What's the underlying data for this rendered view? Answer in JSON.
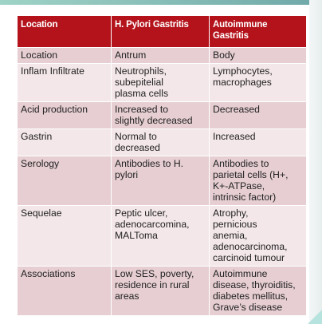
{
  "table": {
    "headers": [
      "Location",
      "H. Pylori Gastritis",
      "Autoimmune Gastritis"
    ],
    "rows": [
      [
        "Location",
        "Antrum",
        "Body"
      ],
      [
        "Inflam Infiltrate",
        "Neutrophils,\nsubepitelial\nplasma cells",
        "Lymphocytes,\nmacrophages"
      ],
      [
        "Acid production",
        "Increased to\nslightly decreased",
        "Decreased"
      ],
      [
        "Gastrin",
        "Normal to\ndecreased",
        "Increased"
      ],
      [
        "Serology",
        "Antibodies to H.\npylori",
        "Antibodies to\nparietal cells (H+,\nK+-ATPase,\nintrinsic factor)"
      ],
      [
        "Sequelae",
        "Peptic ulcer,\nadenocarcomina,\nMALToma",
        "Atrophy,\npernicious\nanemia,\nadenocarcinoma,\ncarcinoid tumour"
      ],
      [
        "Associations",
        "Low SES, poverty,\nresidence in rural\nareas",
        "Autoimmune\ndisease, thyroiditis,\ndiabetes mellitus,\nGrave’s disease"
      ]
    ]
  },
  "colors": {
    "header_bg": "#b4131b",
    "row_dark": "#e6ced2",
    "row_light": "#f3e7e9"
  }
}
